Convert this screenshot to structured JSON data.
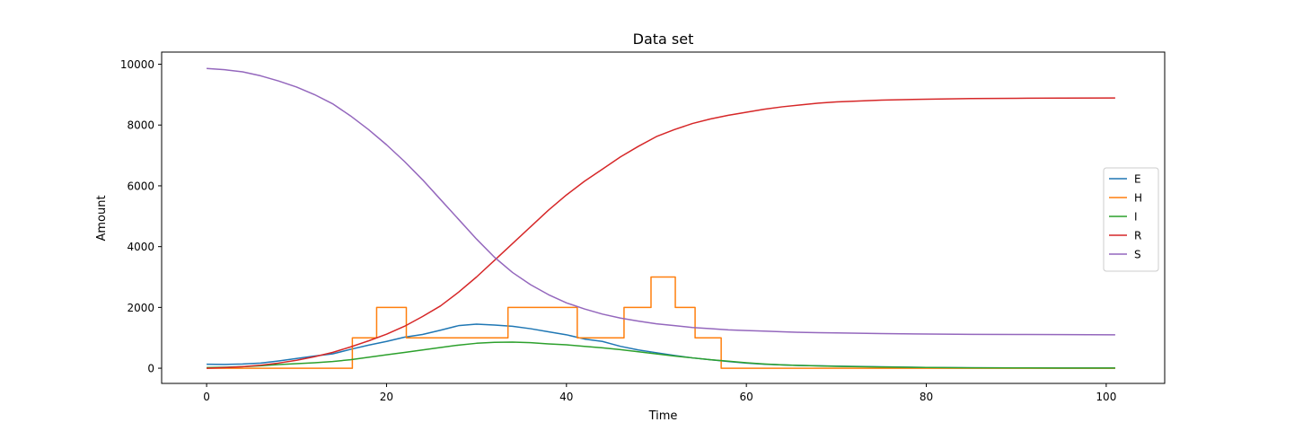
{
  "chart_data": {
    "type": "line",
    "title": "Data set",
    "xlabel": "Time",
    "ylabel": "Amount",
    "xlim": [
      -5,
      106.5
    ],
    "ylim": [
      -500,
      10400
    ],
    "xticks": [
      0,
      20,
      40,
      60,
      80,
      100
    ],
    "yticks": [
      0,
      2000,
      4000,
      6000,
      8000,
      10000
    ],
    "grid": false,
    "legend_position": "center-right",
    "series": [
      {
        "name": "E",
        "color": "#1f77b4",
        "step": false,
        "x": [
          0,
          2,
          4,
          6,
          8,
          10,
          12,
          14,
          16,
          18,
          20,
          22,
          24,
          26,
          28,
          30,
          32,
          34,
          36,
          38,
          40,
          42,
          44,
          46,
          48,
          50,
          52,
          54,
          56,
          58,
          60,
          62,
          64,
          66,
          68,
          70,
          75,
          80,
          85,
          90,
          95,
          101
        ],
        "y": [
          130,
          125,
          140,
          170,
          240,
          320,
          400,
          470,
          620,
          760,
          880,
          1020,
          1110,
          1250,
          1400,
          1450,
          1420,
          1380,
          1300,
          1200,
          1100,
          960,
          880,
          720,
          600,
          510,
          420,
          340,
          280,
          220,
          170,
          130,
          110,
          90,
          80,
          70,
          45,
          25,
          15,
          10,
          6,
          5
        ]
      },
      {
        "name": "H",
        "color": "#ff7f0e",
        "step": true,
        "x": [
          0,
          16.2,
          16.2,
          18.9,
          18.9,
          22.2,
          22.2,
          33.5,
          33.5,
          41.2,
          41.2,
          46.4,
          46.4,
          49.4,
          49.4,
          52.1,
          52.1,
          54.3,
          54.3,
          57.2,
          57.2,
          101
        ],
        "y": [
          0,
          0,
          1000,
          1000,
          2000,
          2000,
          1000,
          1000,
          2000,
          2000,
          1000,
          1000,
          2000,
          2000,
          3000,
          3000,
          2000,
          2000,
          1000,
          1000,
          0,
          0
        ]
      },
      {
        "name": "I",
        "color": "#2ca02c",
        "step": false,
        "x": [
          0,
          2,
          4,
          6,
          8,
          10,
          12,
          14,
          16,
          18,
          20,
          22,
          24,
          26,
          28,
          30,
          32,
          34,
          36,
          38,
          40,
          42,
          44,
          46,
          48,
          50,
          52,
          54,
          56,
          58,
          60,
          62,
          64,
          66,
          68,
          70,
          75,
          80,
          85,
          90,
          95,
          101
        ],
        "y": [
          20,
          30,
          50,
          80,
          120,
          150,
          180,
          220,
          280,
          360,
          440,
          520,
          600,
          680,
          760,
          820,
          850,
          860,
          840,
          800,
          770,
          720,
          670,
          610,
          540,
          470,
          400,
          340,
          280,
          230,
          180,
          140,
          110,
          90,
          75,
          60,
          40,
          25,
          15,
          10,
          7,
          5
        ]
      },
      {
        "name": "R",
        "color": "#d62728",
        "step": false,
        "x": [
          0,
          2,
          4,
          6,
          8,
          10,
          12,
          14,
          16,
          18,
          20,
          22,
          24,
          26,
          28,
          30,
          32,
          34,
          36,
          38,
          40,
          42,
          44,
          46,
          48,
          50,
          52,
          54,
          56,
          58,
          60,
          62,
          64,
          66,
          68,
          70,
          75,
          80,
          85,
          90,
          95,
          101
        ],
        "y": [
          0,
          20,
          50,
          100,
          170,
          260,
          380,
          520,
          700,
          900,
          1120,
          1380,
          1700,
          2050,
          2500,
          3000,
          3550,
          4100,
          4650,
          5200,
          5700,
          6150,
          6550,
          6950,
          7300,
          7620,
          7850,
          8050,
          8200,
          8320,
          8420,
          8520,
          8600,
          8660,
          8720,
          8760,
          8820,
          8850,
          8870,
          8880,
          8885,
          8890
        ]
      },
      {
        "name": "S",
        "color": "#9467bd",
        "step": false,
        "x": [
          0,
          2,
          4,
          6,
          8,
          10,
          12,
          14,
          16,
          18,
          20,
          22,
          24,
          26,
          28,
          30,
          32,
          34,
          36,
          38,
          40,
          42,
          44,
          46,
          48,
          50,
          52,
          54,
          56,
          58,
          60,
          62,
          64,
          66,
          68,
          70,
          75,
          80,
          85,
          90,
          95,
          101
        ],
        "y": [
          9860,
          9820,
          9750,
          9620,
          9450,
          9250,
          9000,
          8700,
          8300,
          7850,
          7350,
          6800,
          6200,
          5550,
          4900,
          4250,
          3650,
          3150,
          2750,
          2420,
          2150,
          1950,
          1780,
          1650,
          1550,
          1460,
          1400,
          1340,
          1300,
          1260,
          1240,
          1220,
          1200,
          1180,
          1170,
          1160,
          1140,
          1125,
          1115,
          1110,
          1105,
          1100
        ]
      }
    ]
  }
}
